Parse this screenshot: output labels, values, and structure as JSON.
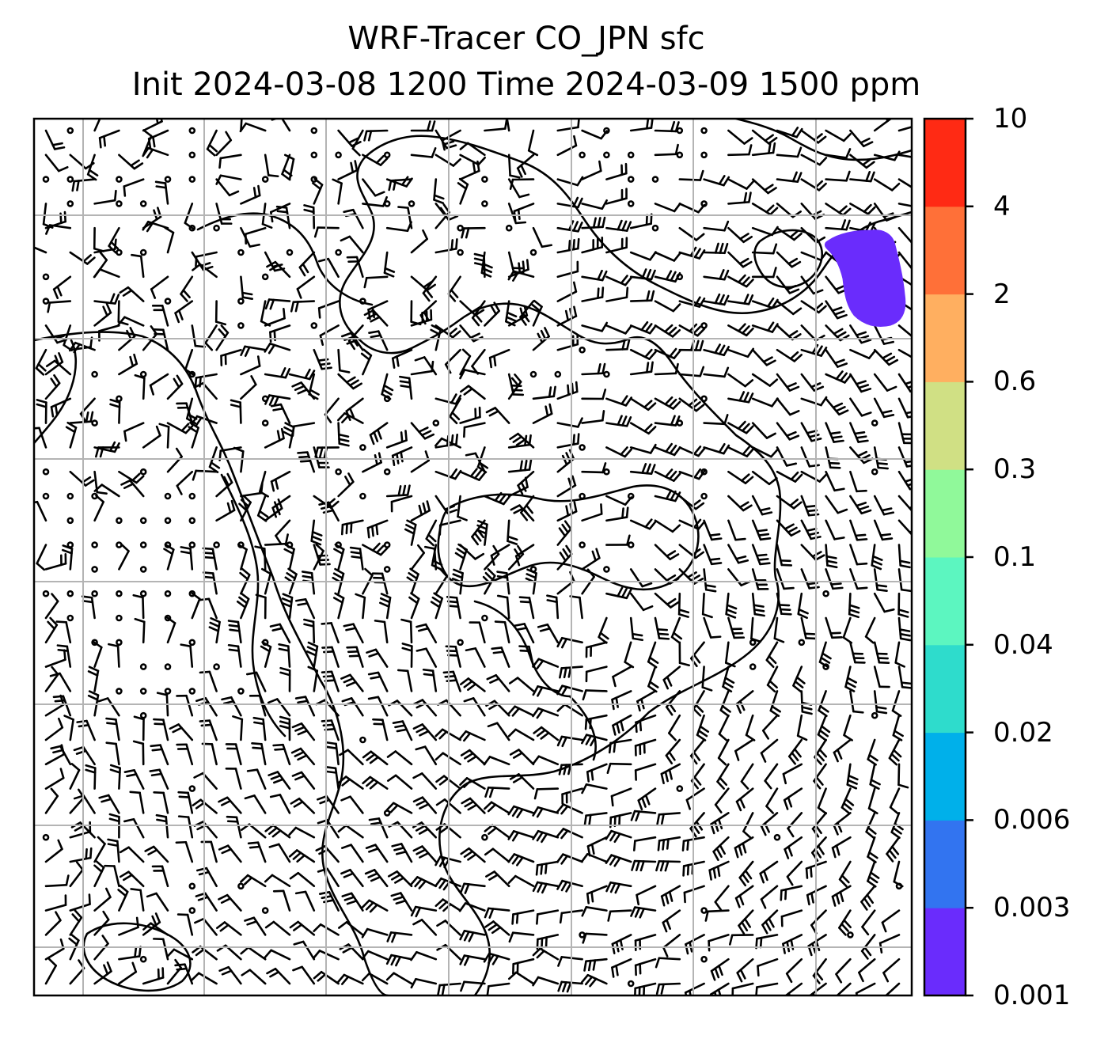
{
  "title": {
    "line1": "WRF-Tracer CO_JPN sfc",
    "line2": "Init 2024-03-08 1200 Time 2024-03-09 1500 ppm"
  },
  "colorbar": {
    "levels": [
      "0.001",
      "0.003",
      "0.006",
      "0.02",
      "0.04",
      "0.1",
      "0.3",
      "0.6",
      "2",
      "4",
      "10"
    ],
    "colors": [
      "#6a2cfc",
      "#3274f0",
      "#00b0ea",
      "#2edccc",
      "#5cf6c0",
      "#90f99a",
      "#d0e084",
      "#ffaf60",
      "#ff7038",
      "#ff2a14"
    ]
  },
  "map": {
    "plume_color": "#6a2cfc",
    "grid_color": "#b4b4b4"
  }
}
